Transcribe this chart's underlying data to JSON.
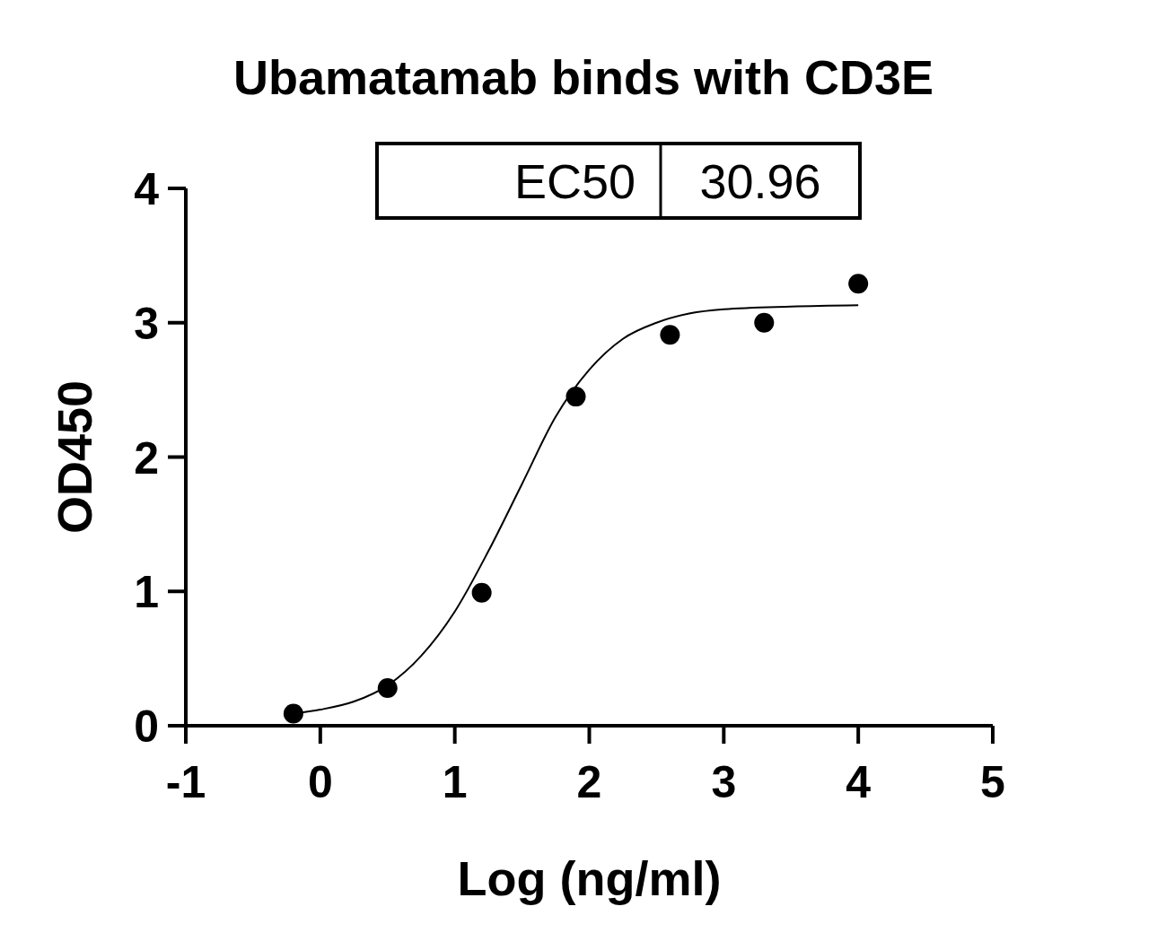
{
  "chart_data": {
    "type": "scatter",
    "title": "Ubamatamab binds with CD3E",
    "xlabel": "Log (ng/ml)",
    "ylabel": "OD450",
    "annotations": [
      "EC50",
      "30.96"
    ],
    "xlim": [
      -1,
      5
    ],
    "xticks": [
      -1,
      0,
      1,
      2,
      3,
      4,
      5
    ],
    "ylim": [
      0,
      4
    ],
    "yticks": [
      0,
      1,
      2,
      3,
      4
    ],
    "grid": false,
    "series": [
      {
        "type": "scatter",
        "color": "#000000",
        "marker": "circle",
        "x": [
          -0.2,
          0.5,
          1.2,
          1.9,
          2.6,
          3.3,
          4.0
        ],
        "values": [
          0.09,
          0.28,
          0.99,
          2.45,
          2.91,
          3.0,
          3.29
        ]
      },
      {
        "type": "line",
        "color": "#000000",
        "marker": "none",
        "line_style": "solid",
        "x": [
          -0.2,
          0,
          0.25,
          0.5,
          0.75,
          1.0,
          1.25,
          1.5,
          1.75,
          2.0,
          2.25,
          2.5,
          2.75,
          3.0,
          3.5,
          4.0
        ],
        "values": [
          0.09,
          0.12,
          0.18,
          0.3,
          0.52,
          0.85,
          1.3,
          1.8,
          2.3,
          2.65,
          2.88,
          3.0,
          3.07,
          3.1,
          3.12,
          3.13
        ]
      }
    ]
  }
}
